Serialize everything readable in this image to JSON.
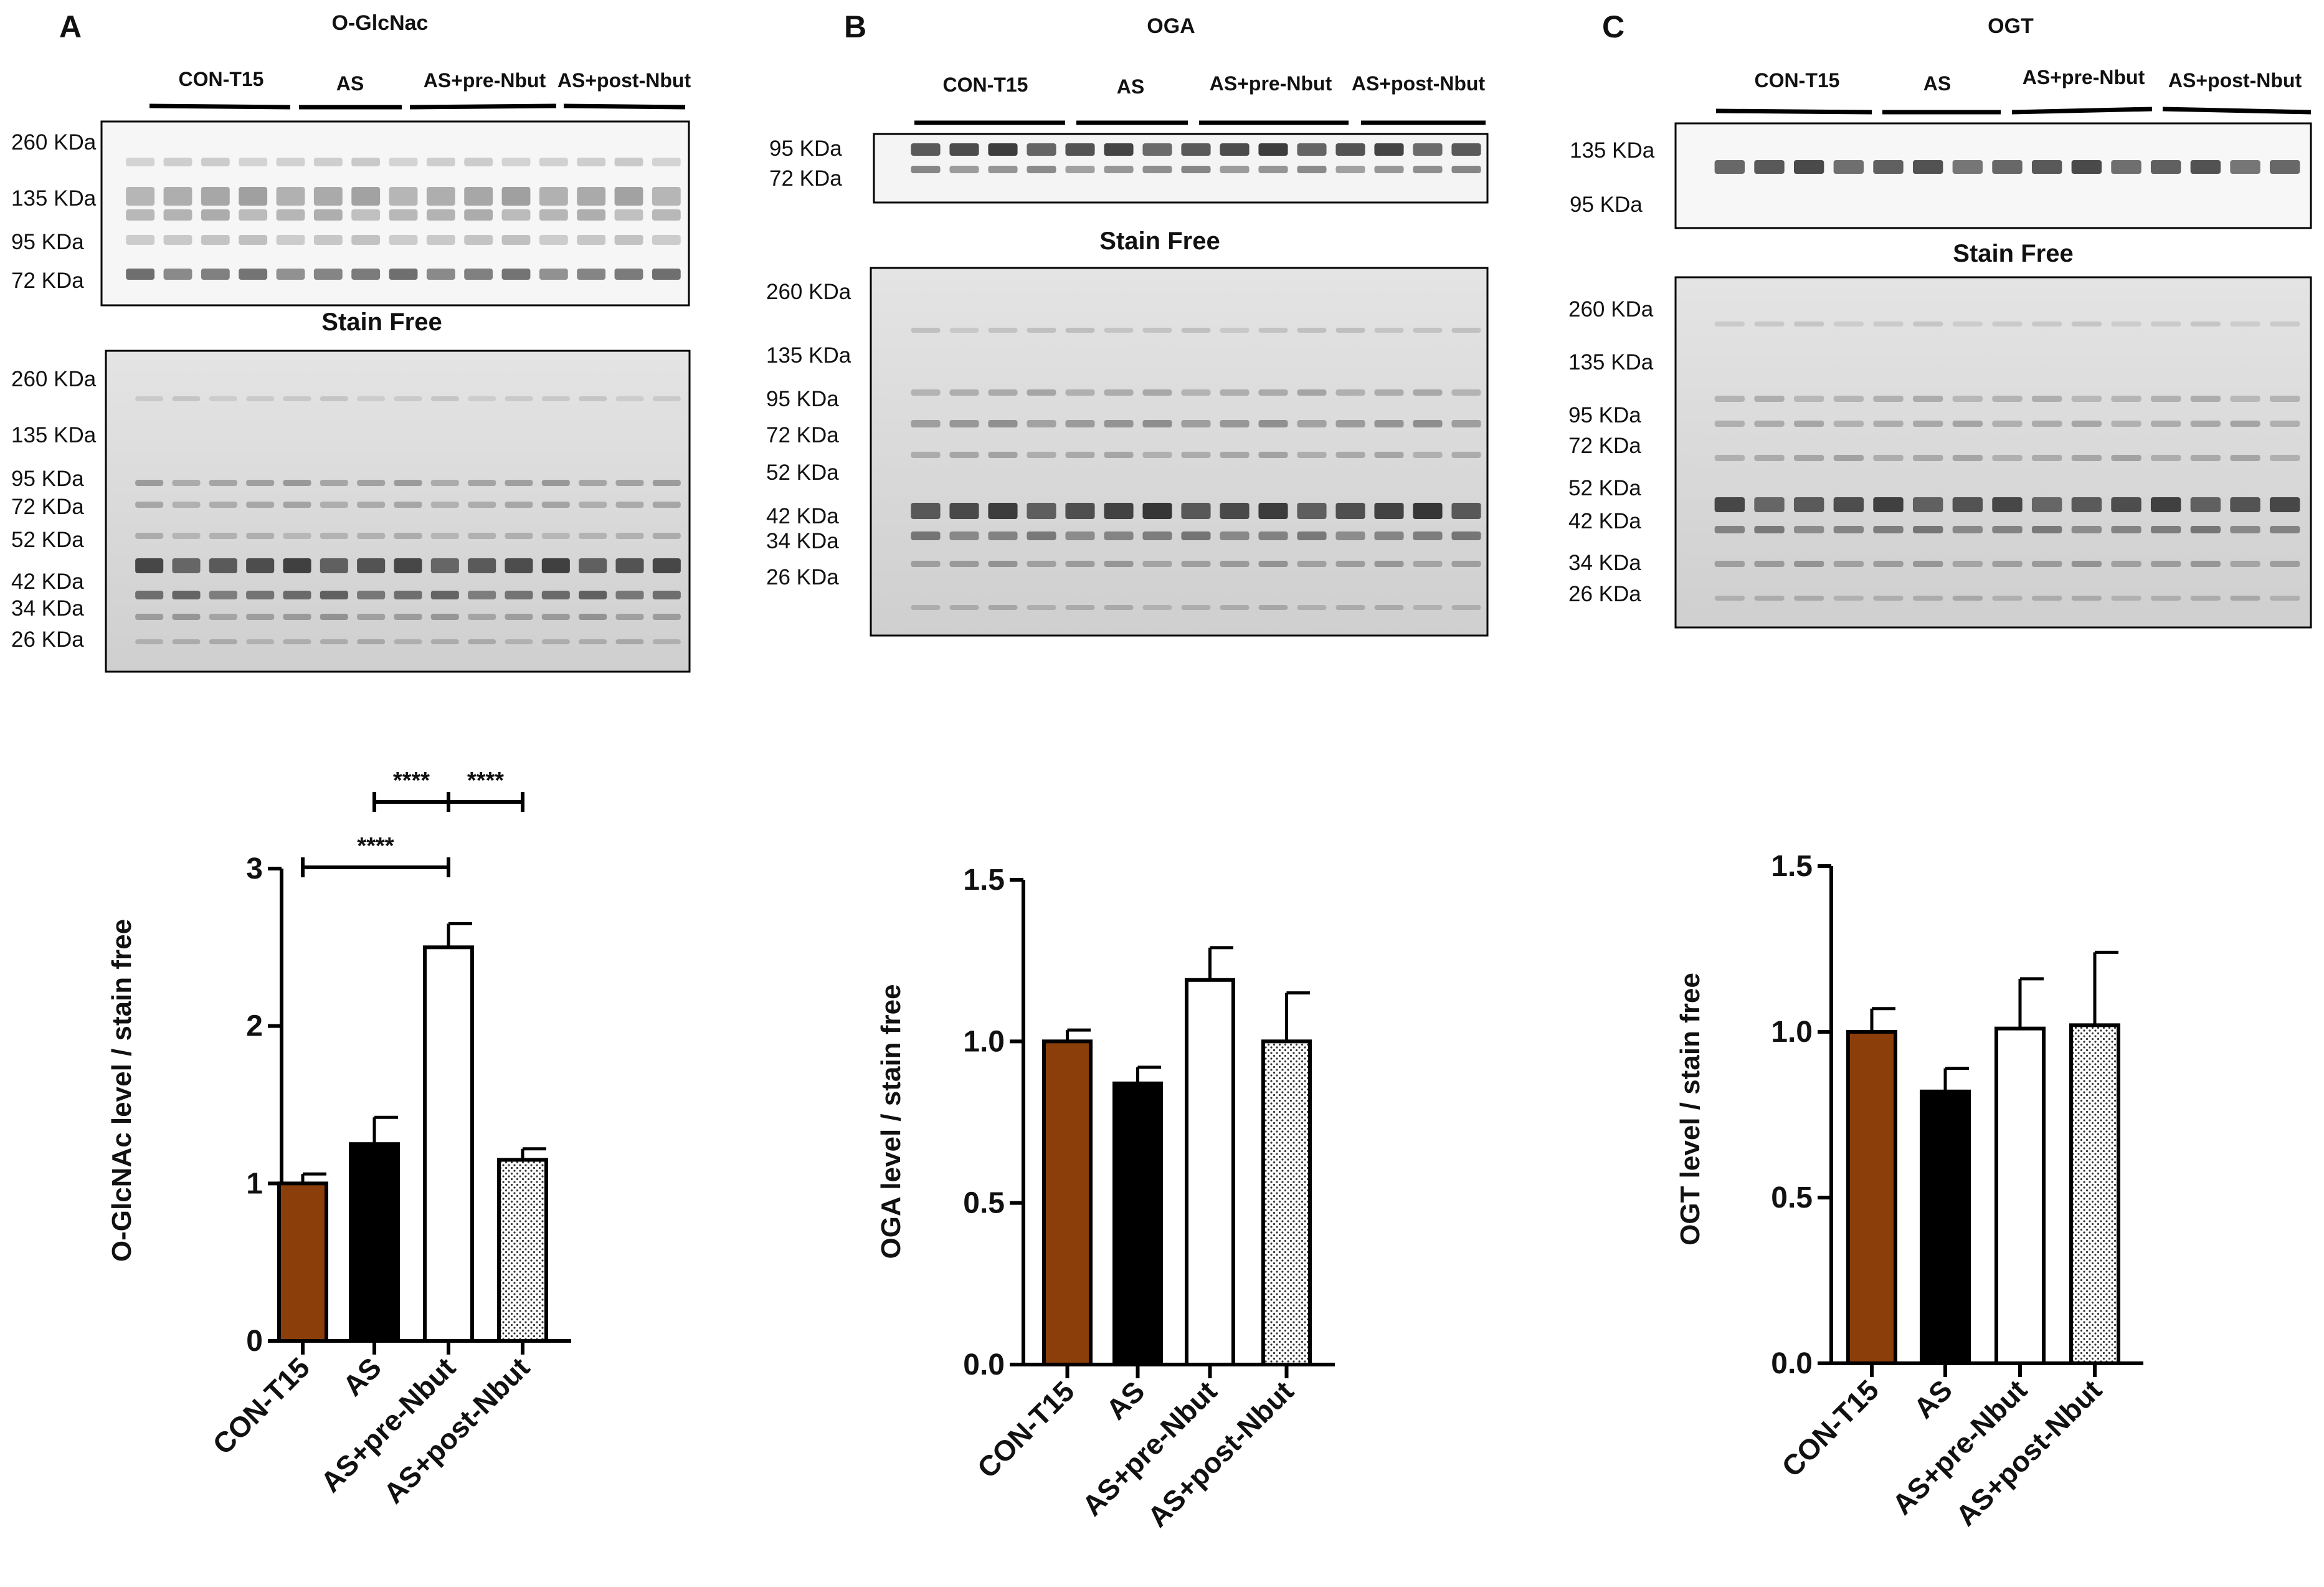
{
  "panels": [
    {
      "label": "A",
      "blot_title": "O-GlcNac",
      "groups": [
        "CON-T15",
        "AS",
        "AS+pre-Nbut",
        "AS+post-Nbut"
      ],
      "blot_markers": [
        "260 KDa",
        "135 KDa",
        "95 KDa",
        "72 KDa"
      ],
      "stain_free_title": "Stain Free",
      "stain_free_markers": [
        "260 KDa",
        "135 KDa",
        "95 KDa",
        "72 KDa",
        "52 KDa",
        "42 KDa",
        "34 KDa",
        "26 KDa"
      ]
    },
    {
      "label": "B",
      "blot_title": "OGA",
      "groups": [
        "CON-T15",
        "AS",
        "AS+pre-Nbut",
        "AS+post-Nbut"
      ],
      "blot_markers": [
        "95 KDa",
        "72 KDa"
      ],
      "stain_free_title": "Stain Free",
      "stain_free_markers": [
        "260 KDa",
        "135 KDa",
        "95 KDa",
        "72 KDa",
        "52 KDa",
        "42 KDa",
        "34 KDa",
        "26 KDa"
      ]
    },
    {
      "label": "C",
      "blot_title": "OGT",
      "groups": [
        "CON-T15",
        "AS",
        "AS+pre-Nbut",
        "AS+post-Nbut"
      ],
      "blot_markers": [
        "135 KDa",
        "95 KDa"
      ],
      "stain_free_title": "Stain Free",
      "stain_free_markers": [
        "260 KDa",
        "135 KDa",
        "95 KDa",
        "72 KDa",
        "52 KDa",
        "42 KDa",
        "34 KDa",
        "26 KDa"
      ]
    }
  ],
  "colors": {
    "con": "#8B3E0A",
    "as": "#000000",
    "pre": "#ffffff",
    "post_pattern": "dotted",
    "axis": "#000000"
  },
  "chart_data": [
    {
      "type": "bar",
      "categories": [
        "CON-T15",
        "AS",
        "AS+pre-Nbut",
        "AS+post-Nbut"
      ],
      "values": [
        1.0,
        1.25,
        2.5,
        1.15
      ],
      "errors": [
        0.06,
        0.17,
        0.15,
        0.07
      ],
      "ylabel": "O-GlcNAc level / stain free",
      "ylim": [
        0,
        3
      ],
      "yticks": [
        "0",
        "1",
        "2",
        "3"
      ],
      "significance": [
        {
          "from": "CON-T15",
          "to": "AS+pre-Nbut",
          "label": "****"
        },
        {
          "from": "AS",
          "to": "AS+pre-Nbut",
          "label": "****"
        },
        {
          "from": "AS+pre-Nbut",
          "to": "AS+post-Nbut",
          "label": "****"
        }
      ]
    },
    {
      "type": "bar",
      "categories": [
        "CON-T15",
        "AS",
        "AS+pre-Nbut",
        "AS+post-Nbut"
      ],
      "values": [
        1.0,
        0.87,
        1.19,
        1.0
      ],
      "errors": [
        0.035,
        0.05,
        0.1,
        0.15
      ],
      "ylabel": "OGA level / stain free",
      "ylim": [
        0,
        1.5
      ],
      "yticks": [
        "0.0",
        "0.5",
        "1.0",
        "1.5"
      ],
      "significance": []
    },
    {
      "type": "bar",
      "categories": [
        "CON-T15",
        "AS",
        "AS+pre-Nbut",
        "AS+post-Nbut"
      ],
      "values": [
        1.0,
        0.82,
        1.01,
        1.02
      ],
      "errors": [
        0.07,
        0.07,
        0.15,
        0.22
      ],
      "ylabel": "OGT level / stain free",
      "ylim": [
        0,
        1.5
      ],
      "yticks": [
        "0.0",
        "0.5",
        "1.0",
        "1.5"
      ],
      "significance": []
    }
  ]
}
